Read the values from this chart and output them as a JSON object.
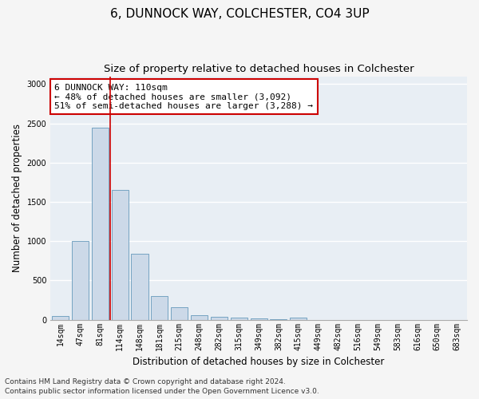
{
  "title": "6, DUNNOCK WAY, COLCHESTER, CO4 3UP",
  "subtitle": "Size of property relative to detached houses in Colchester",
  "xlabel": "Distribution of detached houses by size in Colchester",
  "ylabel": "Number of detached properties",
  "categories": [
    "14sqm",
    "47sqm",
    "81sqm",
    "114sqm",
    "148sqm",
    "181sqm",
    "215sqm",
    "248sqm",
    "282sqm",
    "315sqm",
    "349sqm",
    "382sqm",
    "415sqm",
    "449sqm",
    "482sqm",
    "516sqm",
    "549sqm",
    "583sqm",
    "616sqm",
    "650sqm",
    "683sqm"
  ],
  "values": [
    50,
    1000,
    2450,
    1650,
    840,
    300,
    155,
    55,
    40,
    30,
    20,
    5,
    30,
    0,
    0,
    0,
    0,
    0,
    0,
    0,
    0
  ],
  "bar_color": "#ccd9e8",
  "bar_edge_color": "#6699bb",
  "highlight_line_color": "#cc0000",
  "annotation_text": "6 DUNNOCK WAY: 110sqm\n← 48% of detached houses are smaller (3,092)\n51% of semi-detached houses are larger (3,288) →",
  "annotation_box_color": "#ffffff",
  "annotation_box_edge": "#cc0000",
  "ylim": [
    0,
    3100
  ],
  "yticks": [
    0,
    500,
    1000,
    1500,
    2000,
    2500,
    3000
  ],
  "footer_line1": "Contains HM Land Registry data © Crown copyright and database right 2024.",
  "footer_line2": "Contains public sector information licensed under the Open Government Licence v3.0.",
  "bg_color": "#e8eef4",
  "grid_color": "#ffffff",
  "fig_bg_color": "#f5f5f5",
  "title_fontsize": 11,
  "subtitle_fontsize": 9.5,
  "axis_label_fontsize": 8.5,
  "tick_fontsize": 7,
  "annotation_fontsize": 8,
  "footer_fontsize": 6.5
}
